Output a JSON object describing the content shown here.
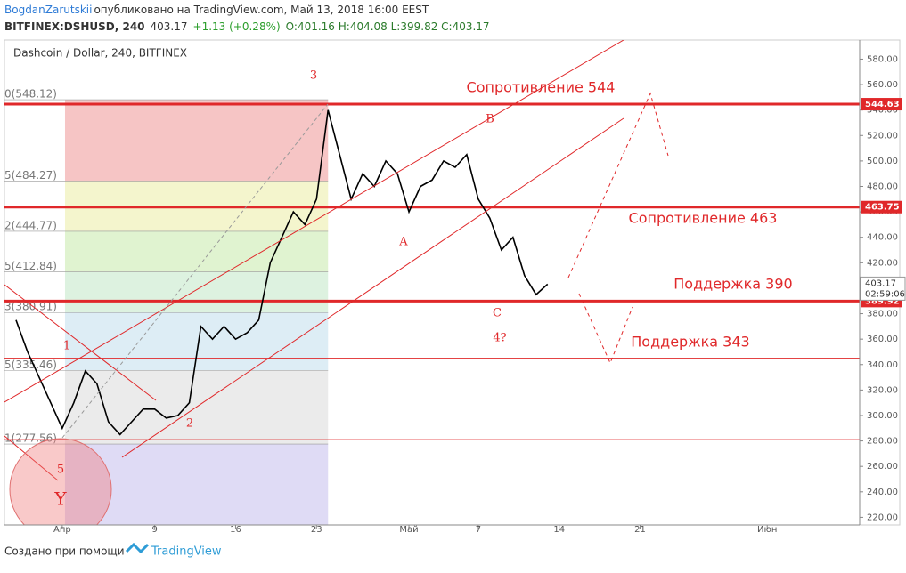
{
  "header": {
    "author": "BogdanZarutskii",
    "published": "опубликовано на TradingView.com, Май 13, 2018 16:00 EEST",
    "symbol": "BITFINEX:DSHUSD, 240",
    "last": "403.17",
    "change": "+1.13 (+0.28%)",
    "ohlc": "O:401.16 H:404.08 L:399.82 C:403.17"
  },
  "chart_data": {
    "type": "line",
    "title": "Dashcoin / Dollar, 240, BITFINEX",
    "color": "#000000",
    "x": [
      "2018-03-28",
      "2018-03-29",
      "2018-03-30",
      "2018-03-31",
      "2018-04-01",
      "2018-04-02",
      "2018-04-03",
      "2018-04-04",
      "2018-04-05",
      "2018-04-06",
      "2018-04-07",
      "2018-04-08",
      "2018-04-09",
      "2018-04-10",
      "2018-04-11",
      "2018-04-12",
      "2018-04-13",
      "2018-04-14",
      "2018-04-15",
      "2018-04-16",
      "2018-04-17",
      "2018-04-18",
      "2018-04-19",
      "2018-04-20",
      "2018-04-21",
      "2018-04-22",
      "2018-04-23",
      "2018-04-24",
      "2018-04-25",
      "2018-04-26",
      "2018-04-27",
      "2018-04-28",
      "2018-04-29",
      "2018-04-30",
      "2018-05-01",
      "2018-05-02",
      "2018-05-03",
      "2018-05-04",
      "2018-05-05",
      "2018-05-06",
      "2018-05-07",
      "2018-05-08",
      "2018-05-09",
      "2018-05-10",
      "2018-05-11",
      "2018-05-12",
      "2018-05-13"
    ],
    "values": [
      375,
      350,
      330,
      310,
      290,
      310,
      335,
      325,
      295,
      285,
      295,
      305,
      305,
      298,
      300,
      310,
      370,
      360,
      370,
      360,
      365,
      375,
      420,
      440,
      460,
      450,
      470,
      540,
      505,
      470,
      490,
      480,
      500,
      490,
      460,
      480,
      485,
      500,
      495,
      505,
      470,
      455,
      430,
      440,
      410,
      395,
      403.17
    ],
    "xlim": [
      "2018-03-27",
      "2018-06-09"
    ],
    "xticks": [
      {
        "value": "2018-04-01",
        "label": "Апр"
      },
      {
        "value": "2018-04-09",
        "label": "9"
      },
      {
        "value": "2018-04-16",
        "label": "16"
      },
      {
        "value": "2018-04-23",
        "label": "23"
      },
      {
        "value": "2018-05-01",
        "label": "Май"
      },
      {
        "value": "2018-05-07",
        "label": "7"
      },
      {
        "value": "2018-05-14",
        "label": "14"
      },
      {
        "value": "2018-05-21",
        "label": "21"
      },
      {
        "value": "2018-06-01",
        "label": "Июн"
      }
    ],
    "ylim": [
      214,
      595
    ],
    "yticks": [
      {
        "value": 220,
        "label": "220.00"
      },
      {
        "value": 240,
        "label": "240.00"
      },
      {
        "value": 260,
        "label": "260.00"
      },
      {
        "value": 280,
        "label": "280.00"
      },
      {
        "value": 300,
        "label": "300.00"
      },
      {
        "value": 320,
        "label": "320.00"
      },
      {
        "value": 340,
        "label": "340.00"
      },
      {
        "value": 360,
        "label": "360.00"
      },
      {
        "value": 380,
        "label": "380.00"
      },
      {
        "value": 400,
        "label": "400.00"
      },
      {
        "value": 420,
        "label": "420.00"
      },
      {
        "value": 440,
        "label": "440.00"
      },
      {
        "value": 460,
        "label": "460.00"
      },
      {
        "value": 480,
        "label": "480.00"
      },
      {
        "value": 500,
        "label": "500.00"
      },
      {
        "value": 520,
        "label": "520.00"
      },
      {
        "value": 540,
        "label": "540.00"
      },
      {
        "value": 560,
        "label": "560.00"
      },
      {
        "value": 580,
        "label": "580.00"
      }
    ],
    "levels": [
      544.63,
      463.75,
      389.92
    ],
    "minor_levels": [
      345,
      281
    ],
    "countdown": "02:59:06",
    "fib": [
      {
        "value": 548.12,
        "label": "0(548.12)",
        "color": "#f4b6b6"
      },
      {
        "value": 484.27,
        "label": "5(484.27)",
        "color": "#f1f3c0"
      },
      {
        "value": 444.77,
        "label": "2(444.77)",
        "color": "#d8f0c4"
      },
      {
        "value": 412.84,
        "label": "5(412.84)",
        "color": "#d4efd8"
      },
      {
        "value": 380.91,
        "label": "3(380.91)",
        "color": "#d5e8f3"
      },
      {
        "value": 335.46,
        "label": "5(335.46)",
        "color": "#e6e6e6"
      },
      {
        "value": 277.56,
        "label": "1(277.56)",
        "color": "#d7d2f2"
      }
    ],
    "annotations": [
      "3",
      "1",
      "2",
      "5",
      "Y",
      "A",
      "B",
      "C",
      "4?",
      "Сопротивление 544",
      "Сопротивление 463",
      "Поддержка 390",
      "Поддержка 343"
    ]
  },
  "footer": {
    "made": "Создано при помощи",
    "brand": "TradingView"
  }
}
